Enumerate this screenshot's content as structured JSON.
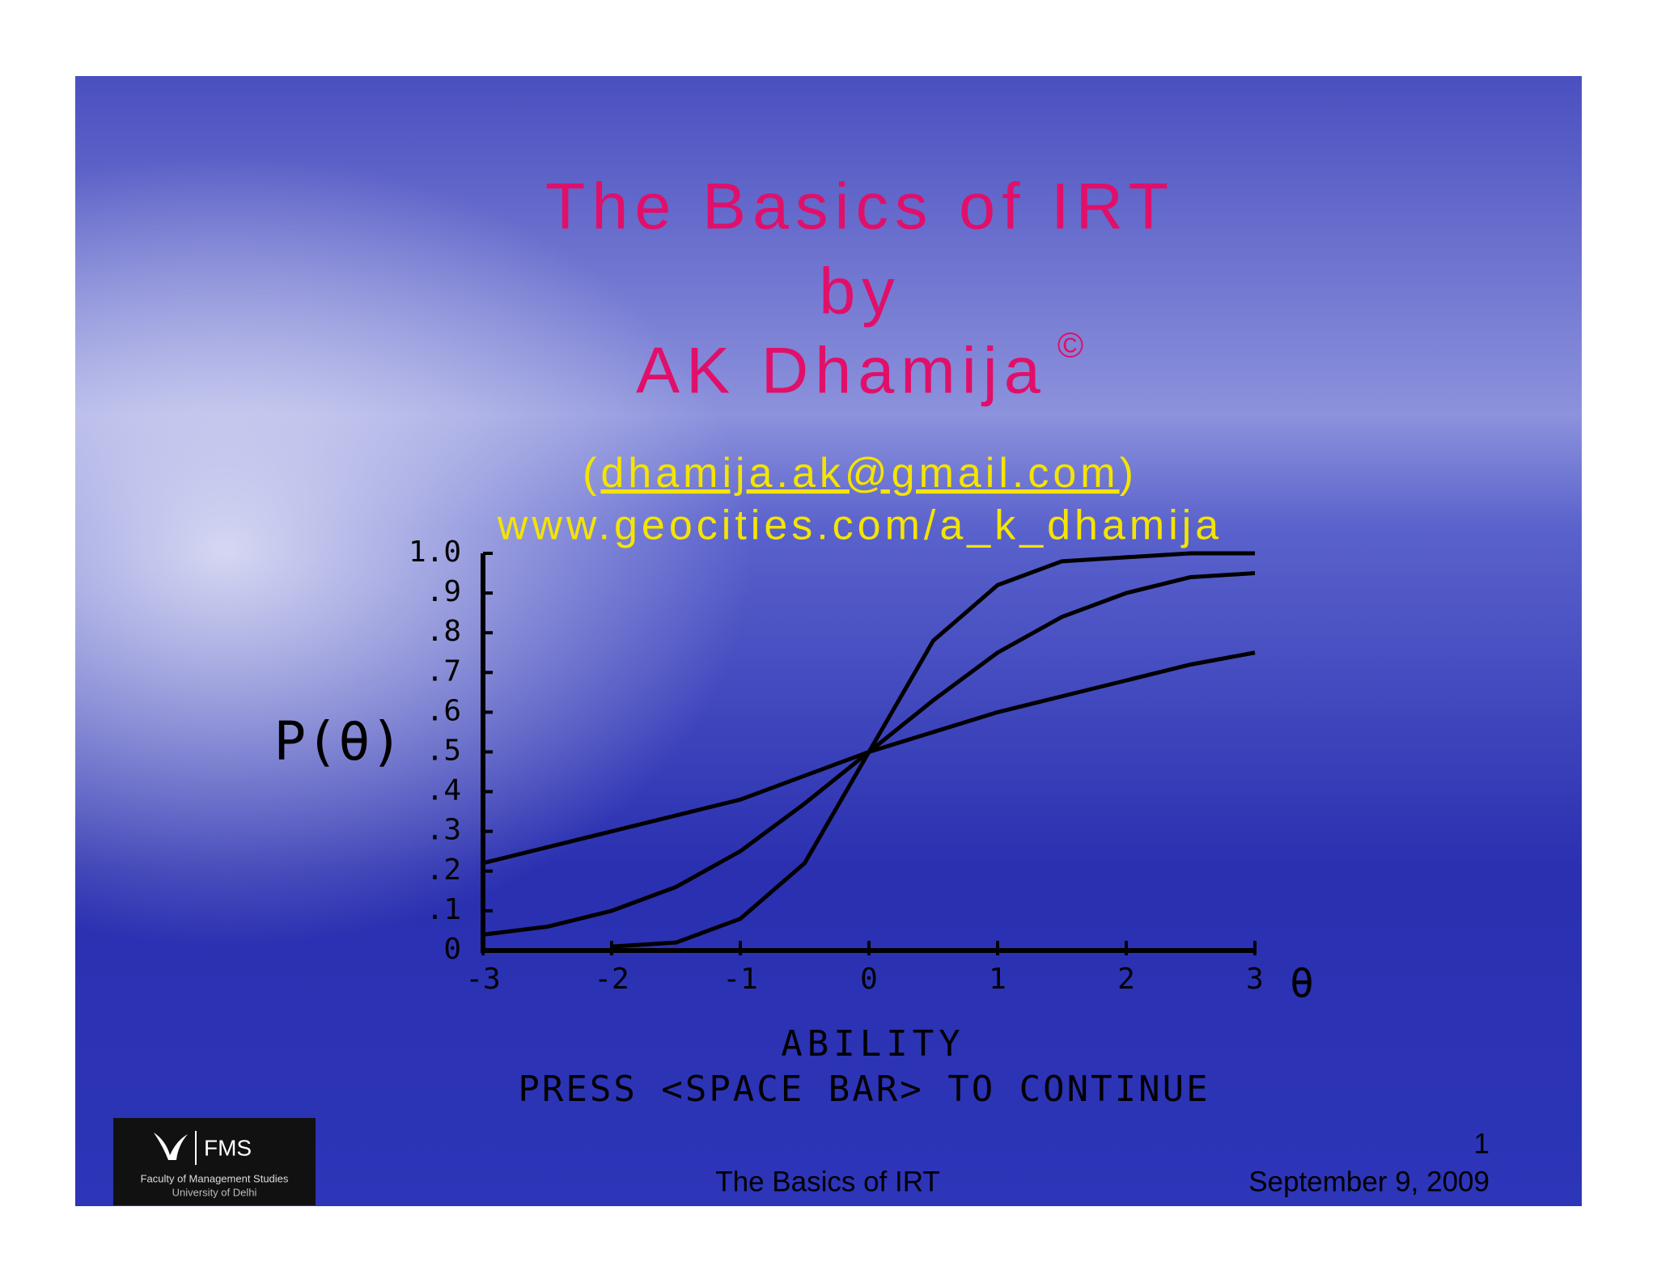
{
  "slide": {
    "title_lines": [
      "The Basics of IRT",
      "by",
      "AK Dhamija"
    ],
    "copyright": "©",
    "email_line": [
      "(",
      "dhamija.ak@gmail.com",
      ")"
    ],
    "url": "www.geocities.com/a_k_dhamija",
    "logo": {
      "short": "FMS",
      "name": "Faculty of Management Studies",
      "university": "University of Delhi"
    },
    "footer": {
      "page": "1",
      "center": "The Basics of IRT",
      "date": "September 9, 2009"
    }
  },
  "chart_data": {
    "type": "line",
    "y_label": "P(θ)",
    "x_symbol": "θ",
    "x_label": "ABILITY",
    "note": "PRESS <SPACE BAR> TO CONTINUE",
    "x": [
      -3,
      -2.5,
      -2,
      -1.5,
      -1,
      -0.5,
      0,
      0.5,
      1,
      1.5,
      2,
      2.5,
      3
    ],
    "series": [
      {
        "color": "#000000",
        "values": [
          null,
          null,
          0.01,
          0.02,
          0.08,
          0.22,
          0.5,
          0.78,
          0.92,
          0.98,
          0.99,
          1.0,
          1.0
        ]
      },
      {
        "color": "#000000",
        "values": [
          0.04,
          0.06,
          0.1,
          0.16,
          0.25,
          0.37,
          0.5,
          0.63,
          0.75,
          0.84,
          0.9,
          0.94,
          0.95
        ]
      },
      {
        "color": "#000000",
        "values": [
          0.22,
          0.26,
          0.3,
          0.34,
          0.38,
          0.44,
          0.5,
          0.55,
          0.6,
          0.64,
          0.68,
          0.72,
          0.75
        ]
      }
    ],
    "xlim": [
      -3,
      3
    ],
    "ylim": [
      0,
      1
    ],
    "xticks": [
      -3,
      -2,
      -1,
      0,
      1,
      2,
      3
    ],
    "yticks": [
      0,
      {
        "value": 0.1,
        "label": ".1"
      },
      {
        "value": 0.2,
        "label": ".2"
      },
      {
        "value": 0.3,
        "label": ".3"
      },
      {
        "value": 0.4,
        "label": ".4"
      },
      {
        "value": 0.5,
        "label": ".5"
      },
      {
        "value": 0.6,
        "label": ".6"
      },
      {
        "value": 0.7,
        "label": ".7"
      },
      {
        "value": 0.8,
        "label": ".8"
      },
      {
        "value": 0.9,
        "label": ".9"
      },
      {
        "value": 1.0,
        "label": "1.0"
      }
    ],
    "grid": false
  }
}
